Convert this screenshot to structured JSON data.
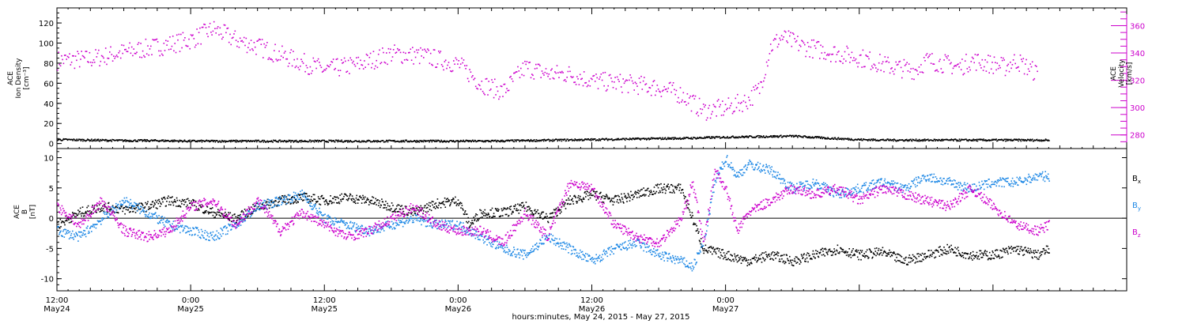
{
  "chart_data": [
    {
      "panel": "top",
      "type": "scatter",
      "title": "",
      "ylabel_left": [
        "ACE",
        "Ion Density",
        "[cm⁻³]"
      ],
      "ylabel_right": [
        "ACE",
        "Velocity",
        "[km/s]"
      ],
      "ylim_left": [
        -5,
        135
      ],
      "yticks_left": [
        "0",
        "20",
        "40",
        "60",
        "80",
        "100",
        "120"
      ],
      "ylim_right": [
        270,
        373
      ],
      "yticks_right": [
        "280",
        "300",
        "320",
        "340",
        "360"
      ],
      "colors": {
        "density": "#000000",
        "velocity": "#cc00cc"
      },
      "series": [
        {
          "axis": "left",
          "color": "#000000",
          "points": [
            [
              0,
              4.5
            ],
            [
              3,
              4
            ],
            [
              6,
              3.5
            ],
            [
              9,
              3.5
            ],
            [
              12,
              3
            ],
            [
              15,
              3
            ],
            [
              18,
              3
            ],
            [
              21,
              3
            ],
            [
              24,
              3
            ],
            [
              27,
              3
            ],
            [
              30,
              3
            ],
            [
              33,
              3
            ],
            [
              36,
              3
            ],
            [
              39,
              3
            ],
            [
              42,
              3.5
            ],
            [
              45,
              4
            ],
            [
              48,
              4.5
            ],
            [
              51,
              5
            ],
            [
              54,
              5.5
            ],
            [
              57,
              6
            ],
            [
              60,
              7
            ],
            [
              63,
              7.5
            ],
            [
              66,
              8
            ],
            [
              69,
              6
            ],
            [
              72,
              4.5
            ],
            [
              75,
              4
            ],
            [
              78,
              4
            ],
            [
              81,
              4
            ],
            [
              84,
              4
            ],
            [
              87,
              4
            ],
            [
              89,
              4
            ]
          ]
        },
        {
          "axis": "right",
          "color": "#cc00cc",
          "points": [
            [
              0,
              335
            ],
            [
              3,
              336
            ],
            [
              6,
              341
            ],
            [
              9,
              345
            ],
            [
              12,
              350
            ],
            [
              14,
              358
            ],
            [
              16,
              350
            ],
            [
              18,
              345
            ],
            [
              21,
              336
            ],
            [
              24,
              328
            ],
            [
              27,
              332
            ],
            [
              30,
              340
            ],
            [
              33,
              338
            ],
            [
              36,
              332
            ],
            [
              38,
              318
            ],
            [
              40,
              312
            ],
            [
              42,
              330
            ],
            [
              44,
              325
            ],
            [
              46,
              325
            ],
            [
              48,
              320
            ],
            [
              51,
              318
            ],
            [
              54,
              315
            ],
            [
              56,
              310
            ],
            [
              58,
              298
            ],
            [
              60,
              300
            ],
            [
              62,
              306
            ],
            [
              63,
              314
            ],
            [
              64,
              345
            ],
            [
              65,
              352
            ],
            [
              67,
              345
            ],
            [
              70,
              340
            ],
            [
              72,
              337
            ],
            [
              75,
              330
            ],
            [
              77,
              328
            ],
            [
              78,
              335
            ],
            [
              80,
              332
            ],
            [
              81,
              330
            ],
            [
              82,
              335
            ],
            [
              84,
              332
            ],
            [
              85,
              330
            ],
            [
              86,
              335
            ],
            [
              87,
              330
            ],
            [
              88,
              325
            ]
          ]
        }
      ]
    },
    {
      "panel": "bottom",
      "type": "scatter",
      "title": "",
      "ylabel_left": [
        "ACE",
        "B",
        "[nT]"
      ],
      "ylim": [
        -12,
        11.5
      ],
      "yticks": [
        "-10",
        "-5",
        "0",
        "5",
        "10"
      ],
      "xlabel": "hours:minutes, May 24, 2015 - May 27, 2015",
      "xlim_hours": [
        0,
        96
      ],
      "x_tick_labels": [
        {
          "hour": 0,
          "time": "12:00",
          "date": "May24"
        },
        {
          "hour": 12,
          "time": "0:00",
          "date": "May25"
        },
        {
          "hour": 24,
          "time": "12:00",
          "date": "May25"
        },
        {
          "hour": 36,
          "time": "0:00",
          "date": "May26"
        },
        {
          "hour": 48,
          "time": "12:00",
          "date": "May26"
        },
        {
          "hour": 60,
          "time": "0:00",
          "date": "May27"
        }
      ],
      "legend": [
        {
          "label": "B",
          "sub": "x",
          "color": "#000000"
        },
        {
          "label": "B",
          "sub": "y",
          "color": "#1e88e5"
        },
        {
          "label": "B",
          "sub": "z",
          "color": "#cc00cc"
        }
      ],
      "series": [
        {
          "name": "Bx",
          "color": "#000000",
          "points": [
            [
              0,
              -1
            ],
            [
              2,
              1
            ],
            [
              4,
              2
            ],
            [
              6,
              1.5
            ],
            [
              8,
              2
            ],
            [
              10,
              3
            ],
            [
              12,
              2.5
            ],
            [
              14,
              1
            ],
            [
              16,
              0
            ],
            [
              18,
              2
            ],
            [
              20,
              3
            ],
            [
              22,
              3.5
            ],
            [
              24,
              3
            ],
            [
              26,
              3.5
            ],
            [
              28,
              3
            ],
            [
              30,
              2
            ],
            [
              32,
              1
            ],
            [
              34,
              2.5
            ],
            [
              36,
              3
            ],
            [
              37,
              -1
            ],
            [
              38,
              1
            ],
            [
              40,
              1
            ],
            [
              42,
              2
            ],
            [
              44,
              0
            ],
            [
              46,
              3
            ],
            [
              48,
              4
            ],
            [
              50,
              3
            ],
            [
              52,
              4
            ],
            [
              54,
              5
            ],
            [
              56,
              5
            ],
            [
              58,
              -5
            ],
            [
              60,
              -6
            ],
            [
              62,
              -7
            ],
            [
              64,
              -6
            ],
            [
              66,
              -7
            ],
            [
              68,
              -6
            ],
            [
              70,
              -5
            ],
            [
              72,
              -6
            ],
            [
              74,
              -5.5
            ],
            [
              76,
              -7
            ],
            [
              78,
              -6
            ],
            [
              80,
              -5
            ],
            [
              82,
              -6
            ],
            [
              84,
              -6
            ],
            [
              86,
              -5
            ],
            [
              88,
              -6
            ],
            [
              89,
              -5
            ]
          ]
        },
        {
          "name": "By",
          "color": "#1e88e5",
          "points": [
            [
              0,
              -2
            ],
            [
              2,
              -3
            ],
            [
              4,
              0
            ],
            [
              6,
              3
            ],
            [
              8,
              1
            ],
            [
              10,
              -1
            ],
            [
              12,
              -2
            ],
            [
              14,
              -3
            ],
            [
              16,
              -1
            ],
            [
              18,
              2
            ],
            [
              20,
              3
            ],
            [
              22,
              4
            ],
            [
              24,
              0
            ],
            [
              26,
              -1
            ],
            [
              28,
              -2
            ],
            [
              30,
              -1
            ],
            [
              32,
              0
            ],
            [
              34,
              -1
            ],
            [
              36,
              -1
            ],
            [
              38,
              -3
            ],
            [
              40,
              -5
            ],
            [
              42,
              -6
            ],
            [
              44,
              -3
            ],
            [
              46,
              -5
            ],
            [
              48,
              -7
            ],
            [
              50,
              -5
            ],
            [
              52,
              -4
            ],
            [
              54,
              -6
            ],
            [
              56,
              -7
            ],
            [
              57,
              -8
            ],
            [
              58,
              -4
            ],
            [
              59,
              6
            ],
            [
              60,
              10
            ],
            [
              61,
              7
            ],
            [
              62,
              9
            ],
            [
              64,
              8
            ],
            [
              66,
              5
            ],
            [
              68,
              6
            ],
            [
              70,
              4
            ],
            [
              72,
              5
            ],
            [
              74,
              6
            ],
            [
              76,
              5
            ],
            [
              78,
              7
            ],
            [
              80,
              6
            ],
            [
              82,
              5
            ],
            [
              84,
              6
            ],
            [
              86,
              6
            ],
            [
              88,
              7
            ],
            [
              89,
              7
            ]
          ]
        },
        {
          "name": "Bz",
          "color": "#cc00cc",
          "points": [
            [
              0,
              2
            ],
            [
              2,
              -1
            ],
            [
              4,
              3
            ],
            [
              6,
              -2
            ],
            [
              8,
              -3
            ],
            [
              10,
              -2
            ],
            [
              12,
              2
            ],
            [
              14,
              3
            ],
            [
              16,
              -1
            ],
            [
              18,
              3
            ],
            [
              20,
              -2
            ],
            [
              22,
              1
            ],
            [
              24,
              -1
            ],
            [
              26,
              -3
            ],
            [
              28,
              -2
            ],
            [
              30,
              0
            ],
            [
              32,
              2
            ],
            [
              34,
              -1
            ],
            [
              36,
              -2
            ],
            [
              38,
              -2
            ],
            [
              40,
              -4
            ],
            [
              42,
              1
            ],
            [
              44,
              -3
            ],
            [
              46,
              6
            ],
            [
              48,
              5
            ],
            [
              50,
              -1
            ],
            [
              52,
              -3
            ],
            [
              54,
              -4
            ],
            [
              56,
              0
            ],
            [
              57,
              6
            ],
            [
              58,
              -4
            ],
            [
              59,
              8
            ],
            [
              60,
              5
            ],
            [
              61,
              -2
            ],
            [
              62,
              1
            ],
            [
              64,
              3
            ],
            [
              66,
              5
            ],
            [
              68,
              4
            ],
            [
              70,
              5
            ],
            [
              72,
              3
            ],
            [
              74,
              5
            ],
            [
              76,
              4
            ],
            [
              78,
              3
            ],
            [
              80,
              2
            ],
            [
              82,
              5
            ],
            [
              84,
              2
            ],
            [
              86,
              -1
            ],
            [
              88,
              -2
            ],
            [
              89,
              -1
            ]
          ]
        }
      ]
    }
  ]
}
